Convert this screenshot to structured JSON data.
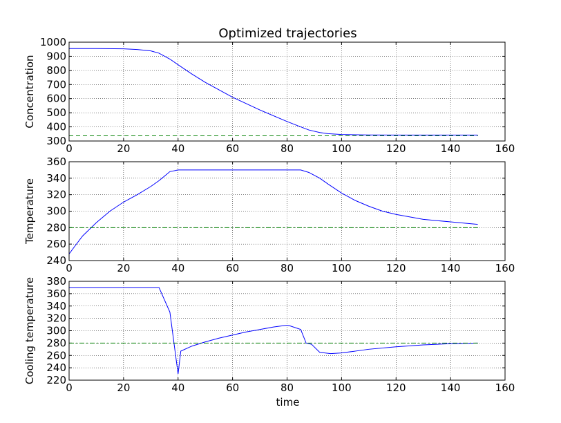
{
  "figure": {
    "title": "Optimized trajectories",
    "xlabel": "time"
  },
  "colors": {
    "trajectory": "#0000ff",
    "reference": "#008000"
  },
  "chart_data": [
    {
      "type": "line",
      "title": "Optimized trajectories",
      "xlabel": "",
      "ylabel": "Concentration",
      "xlim": [
        0,
        160
      ],
      "ylim": [
        300,
        1000
      ],
      "xticks": [
        "0",
        "20",
        "40",
        "60",
        "80",
        "100",
        "120",
        "140",
        "160"
      ],
      "yticks": [
        "300",
        "400",
        "500",
        "600",
        "700",
        "800",
        "900",
        "1000"
      ],
      "grid": true,
      "series": [
        {
          "style": "solid",
          "color": "#0000ff",
          "x": [
            0,
            10,
            20,
            25,
            30,
            33,
            37,
            40,
            45,
            50,
            60,
            70,
            80,
            85,
            88,
            92,
            95,
            100,
            110,
            120,
            130,
            140,
            150
          ],
          "y": [
            955,
            955,
            953,
            948,
            938,
            922,
            880,
            840,
            775,
            715,
            610,
            520,
            438,
            400,
            378,
            360,
            352,
            346,
            343,
            342,
            342,
            342,
            342
          ]
        },
        {
          "style": "dashed",
          "color": "#008000",
          "x": [
            0,
            150
          ],
          "y": [
            337,
            337
          ]
        }
      ]
    },
    {
      "type": "line",
      "xlabel": "",
      "ylabel": "Temperature",
      "xlim": [
        0,
        160
      ],
      "ylim": [
        240,
        360
      ],
      "xticks": [
        "0",
        "20",
        "40",
        "60",
        "80",
        "100",
        "120",
        "140",
        "160"
      ],
      "yticks": [
        "240",
        "260",
        "280",
        "300",
        "320",
        "340",
        "360"
      ],
      "grid": true,
      "series": [
        {
          "style": "solid",
          "color": "#0000ff",
          "x": [
            0,
            2,
            5,
            10,
            15,
            20,
            25,
            30,
            33,
            37,
            40,
            50,
            60,
            70,
            80,
            85,
            88,
            92,
            95,
            100,
            105,
            110,
            115,
            120,
            130,
            140,
            150
          ],
          "y": [
            248,
            257,
            270,
            286,
            300,
            311,
            320,
            330,
            337,
            348,
            350,
            350,
            350,
            350,
            350,
            350,
            347,
            340,
            333,
            322,
            313,
            306,
            300,
            296,
            290,
            287,
            284
          ]
        },
        {
          "style": "dashdot",
          "color": "#008000",
          "x": [
            0,
            150
          ],
          "y": [
            280,
            280
          ]
        }
      ]
    },
    {
      "type": "line",
      "xlabel": "time",
      "ylabel": "Cooling temperature",
      "xlim": [
        0,
        160
      ],
      "ylim": [
        220,
        380
      ],
      "xticks": [
        "0",
        "20",
        "40",
        "60",
        "80",
        "100",
        "120",
        "140",
        "160"
      ],
      "yticks": [
        "220",
        "240",
        "260",
        "280",
        "300",
        "320",
        "340",
        "360",
        "380"
      ],
      "grid": true,
      "series": [
        {
          "style": "solid",
          "color": "#0000ff",
          "x": [
            0,
            10,
            20,
            30,
            33,
            37,
            40,
            41,
            45,
            50,
            55,
            60,
            65,
            70,
            75,
            80,
            81,
            85,
            87,
            89,
            92,
            96,
            100,
            110,
            120,
            130,
            140,
            150
          ],
          "y": [
            370,
            370,
            370,
            370,
            370,
            330,
            230,
            267,
            275,
            282,
            288,
            293,
            298,
            302,
            306,
            309,
            308,
            302,
            280,
            278,
            265,
            263,
            264,
            270,
            274,
            277,
            279,
            280
          ]
        },
        {
          "style": "dashdot",
          "color": "#008000",
          "x": [
            0,
            150
          ],
          "y": [
            280,
            280
          ]
        }
      ]
    }
  ]
}
